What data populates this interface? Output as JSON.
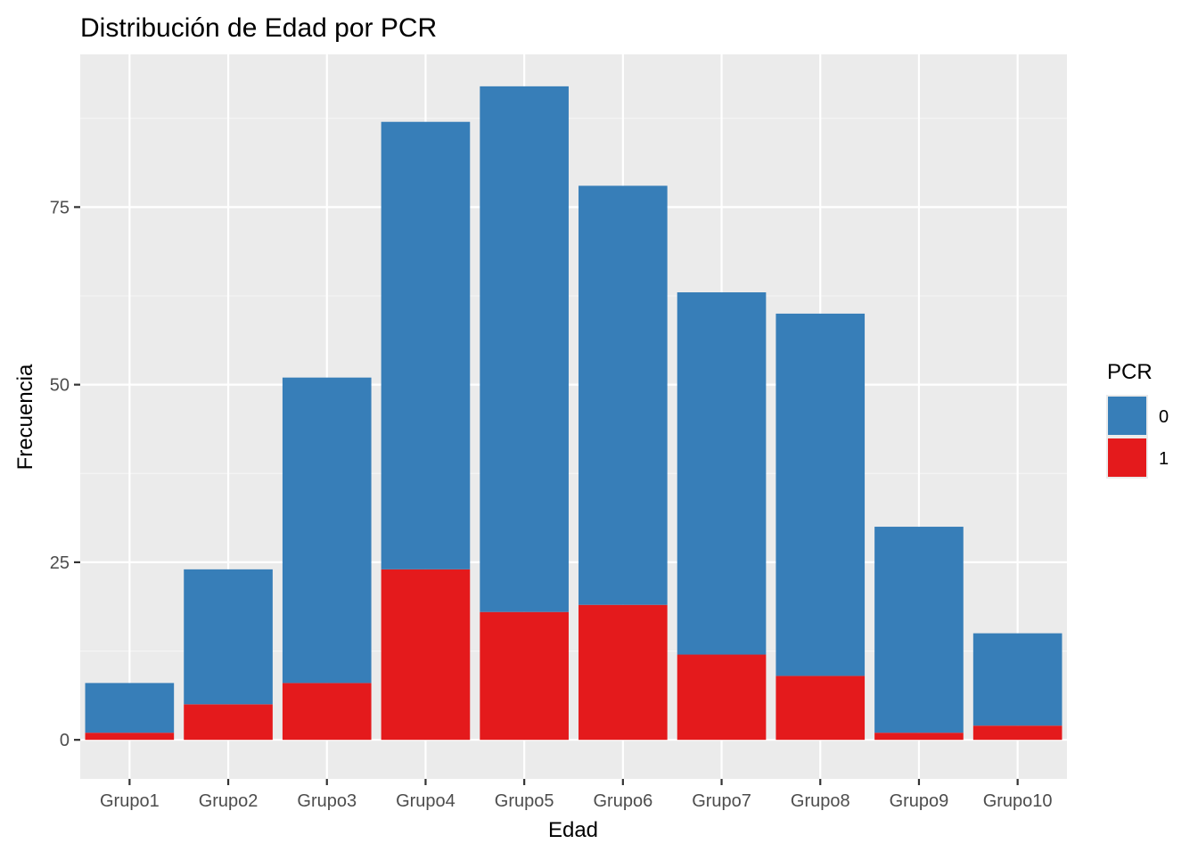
{
  "chart_data": {
    "type": "bar",
    "stacked": true,
    "title": "Distribución de Edad por PCR",
    "xlabel": "Edad",
    "ylabel": "Frecuencia",
    "ylim": [
      -5.5,
      96.5
    ],
    "yticks": [
      0,
      25,
      50,
      75
    ],
    "grid": true,
    "categories": [
      "Grupo1",
      "Grupo2",
      "Grupo3",
      "Grupo4",
      "Grupo5",
      "Grupo6",
      "Grupo7",
      "Grupo8",
      "Grupo9",
      "Grupo10"
    ],
    "series": [
      {
        "name": "0",
        "color": "#377EB8",
        "values": [
          7,
          19,
          43,
          63,
          74,
          59,
          51,
          51,
          29,
          13
        ]
      },
      {
        "name": "1",
        "color": "#E41A1C",
        "values": [
          1,
          5,
          8,
          24,
          18,
          19,
          12,
          9,
          1,
          2
        ]
      }
    ],
    "legend": {
      "title": "PCR",
      "placement": "right",
      "items": [
        {
          "label": "0",
          "color": "#377EB8"
        },
        {
          "label": "1",
          "color": "#E41A1C"
        }
      ]
    },
    "colors": {
      "panel_background": "#EBEBEB",
      "grid_major": "#FFFFFF",
      "grid_minor": "#F5F5F5",
      "tick_text": "#4D4D4D",
      "tick_mark": "#333333"
    }
  }
}
